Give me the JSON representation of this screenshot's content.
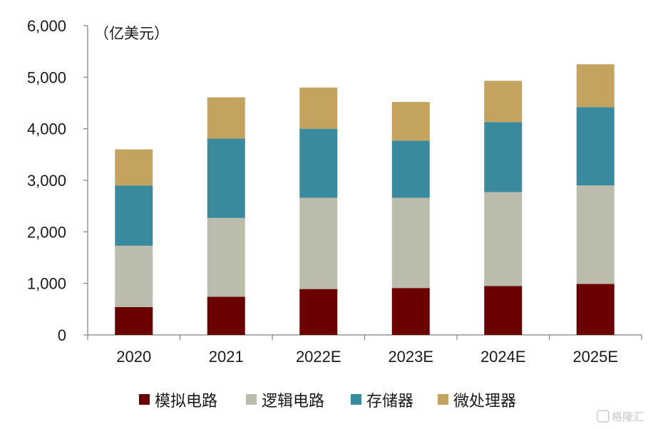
{
  "chart_data": {
    "type": "bar",
    "stacked": true,
    "unit_label": "（亿美元）",
    "categories": [
      "2020",
      "2021",
      "2022E",
      "2023E",
      "2024E",
      "2025E"
    ],
    "series": [
      {
        "name": "模拟电路",
        "color": "#6b0000",
        "values": [
          540,
          740,
          890,
          910,
          950,
          990
        ]
      },
      {
        "name": "逻辑电路",
        "color": "#bcbcac",
        "values": [
          1190,
          1530,
          1770,
          1750,
          1820,
          1910
        ]
      },
      {
        "name": "存储器",
        "color": "#3a8a9e",
        "values": [
          1170,
          1540,
          1340,
          1110,
          1360,
          1520
        ]
      },
      {
        "name": "微处理器",
        "color": "#c4a35e",
        "values": [
          700,
          800,
          800,
          750,
          800,
          830
        ]
      }
    ],
    "ylim": [
      0,
      6000
    ],
    "yticks": [
      0,
      1000,
      2000,
      3000,
      4000,
      5000,
      6000
    ],
    "ytick_labels": [
      "0",
      "1,000",
      "2,000",
      "3,000",
      "4,000",
      "5,000",
      "6,000"
    ],
    "legend_position": "bottom",
    "grid": false
  },
  "watermark": "格隆汇"
}
